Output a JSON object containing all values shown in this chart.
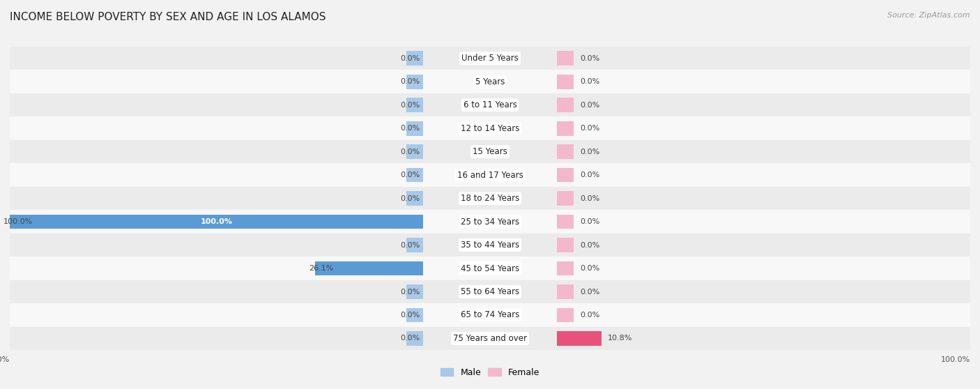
{
  "title": "INCOME BELOW POVERTY BY SEX AND AGE IN LOS ALAMOS",
  "source": "Source: ZipAtlas.com",
  "categories": [
    "Under 5 Years",
    "5 Years",
    "6 to 11 Years",
    "12 to 14 Years",
    "15 Years",
    "16 and 17 Years",
    "18 to 24 Years",
    "25 to 34 Years",
    "35 to 44 Years",
    "45 to 54 Years",
    "55 to 64 Years",
    "65 to 74 Years",
    "75 Years and over"
  ],
  "male_values": [
    0.0,
    0.0,
    0.0,
    0.0,
    0.0,
    0.0,
    0.0,
    100.0,
    0.0,
    26.1,
    0.0,
    0.0,
    0.0
  ],
  "female_values": [
    0.0,
    0.0,
    0.0,
    0.0,
    0.0,
    0.0,
    0.0,
    0.0,
    0.0,
    0.0,
    0.0,
    0.0,
    10.8
  ],
  "male_color_light": "#a8c8e8",
  "male_color_solid": "#5b9bd5",
  "female_color_light": "#f4b8cc",
  "female_color_solid": "#e8527a",
  "bg_color": "#f2f2f2",
  "row_even_color": "#ebebeb",
  "row_odd_color": "#f8f8f8",
  "bar_height": 0.62,
  "stub_pct": 4.0,
  "xlim": 100,
  "title_fontsize": 11,
  "label_fontsize": 8.5,
  "value_fontsize": 8.0,
  "legend_fontsize": 9,
  "source_fontsize": 8
}
